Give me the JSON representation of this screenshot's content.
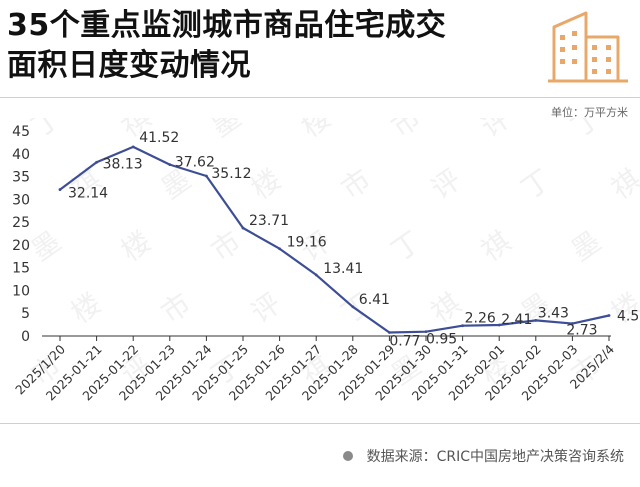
{
  "header": {
    "title_line1": "35个重点监测城市商品住宅成交",
    "title_line2": "面积日度变动情况",
    "unit_label": "单位：万平方米"
  },
  "footer": {
    "source_text": "数据来源：CRIC中国房地产决策咨询系统"
  },
  "logo": {
    "icon": "building-icon",
    "color": "#e7a86a"
  },
  "watermark": {
    "chars": [
      "丁",
      "祺",
      "墨",
      "楼",
      "市",
      "评"
    ]
  },
  "colors": {
    "line": "#3d4e96",
    "axis": "#333333",
    "label": "#333333"
  },
  "chart_data": {
    "type": "line",
    "title": "35个重点监测城市商品住宅成交面积日度变动情况",
    "ylabel": "万平方米",
    "ylim": [
      0,
      45
    ],
    "yticks": [
      0,
      5,
      10,
      15,
      20,
      25,
      30,
      35,
      40,
      45
    ],
    "grid": false,
    "categories": [
      "2025/1/20",
      "2025-01-21",
      "2025-01-22",
      "2025-01-23",
      "2025-01-24",
      "2025-01-25",
      "2025-01-26",
      "2025-01-27",
      "2025-01-28",
      "2025-01-29",
      "2025-01-30",
      "2025-01-31",
      "2025-02-01",
      "2025-02-02",
      "2025-02-03",
      "2025/2/4"
    ],
    "values": [
      32.14,
      38.13,
      41.52,
      37.62,
      35.12,
      23.71,
      19.16,
      13.41,
      6.41,
      0.77,
      0.95,
      2.26,
      2.41,
      3.43,
      2.73,
      4.5
    ],
    "value_labels": [
      "32.14",
      "38.13",
      "41.52",
      "37.62",
      "35.12",
      "23.71",
      "19.16",
      "13.41",
      "6.41",
      "0.77",
      "0.95",
      "2.26",
      "2.41",
      "3.43",
      "2.73",
      "4.50"
    ]
  }
}
